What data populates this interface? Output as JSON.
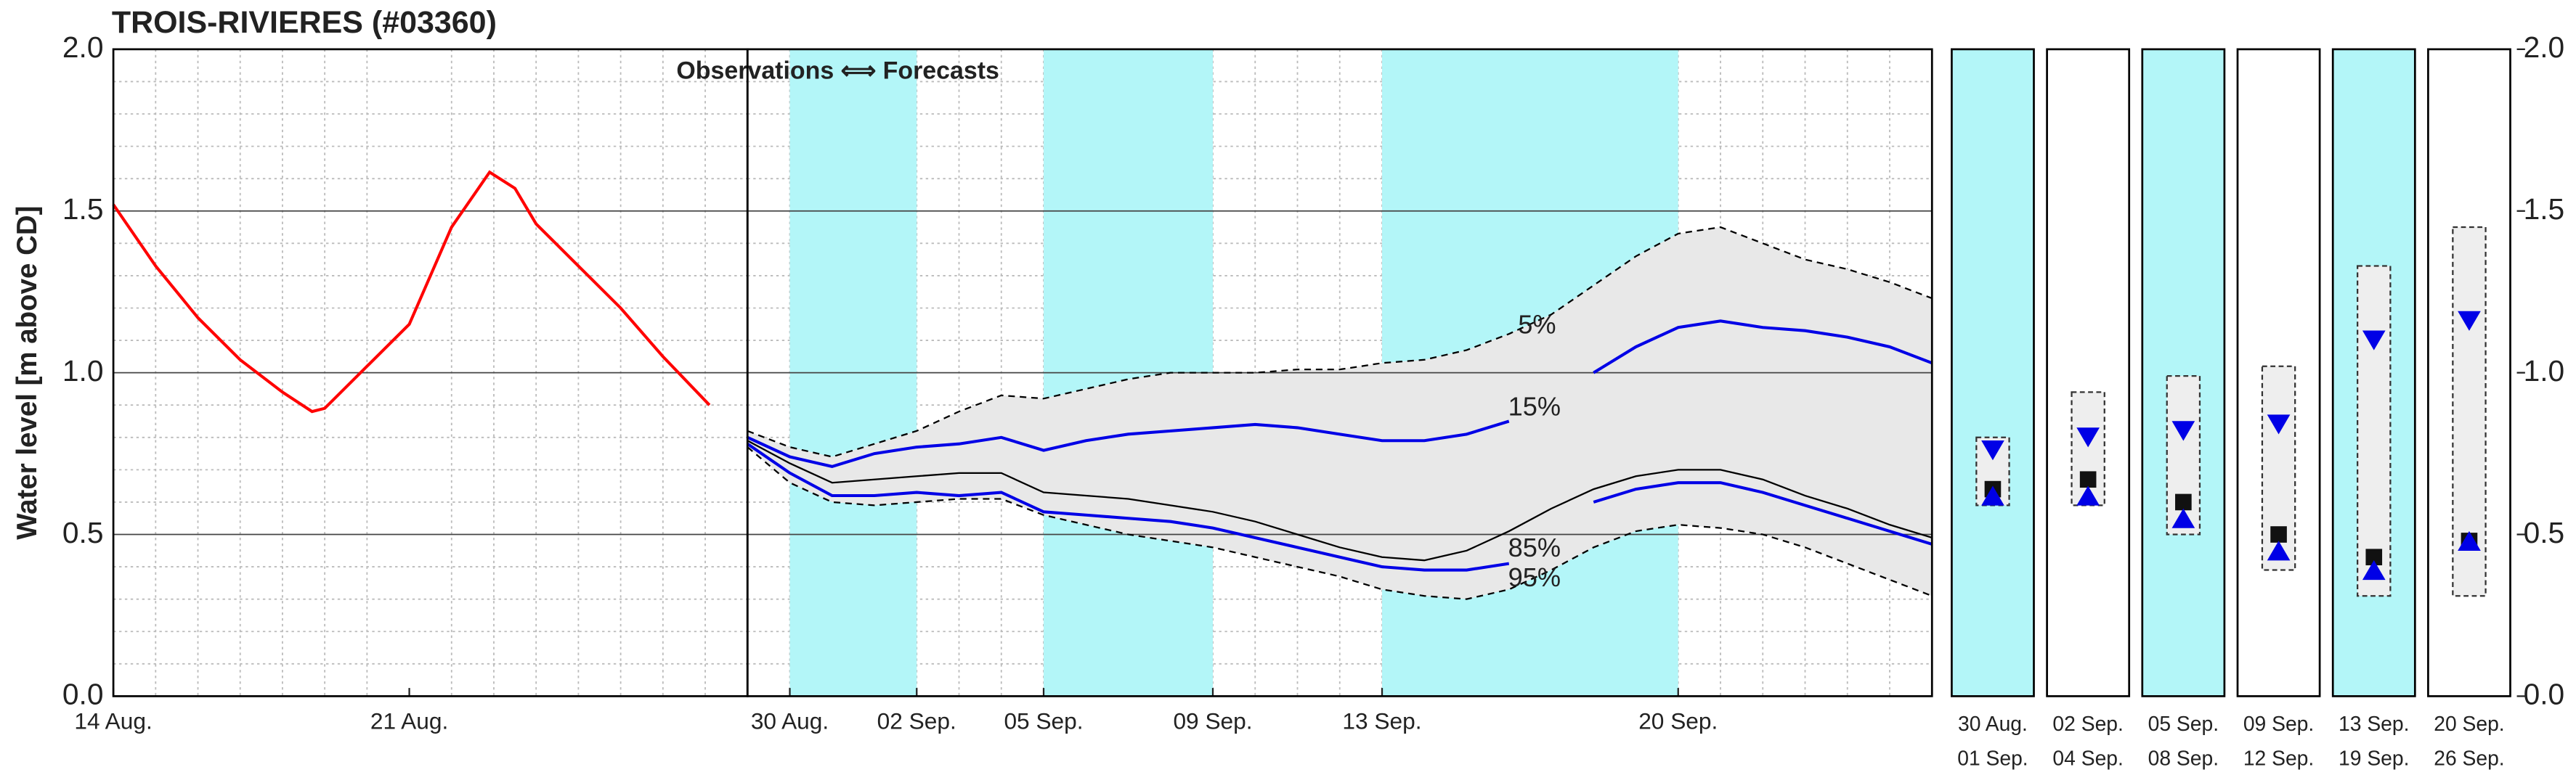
{
  "chart_data": [
    {
      "type": "line",
      "title": "TROIS-RIVIERES (#03360)",
      "ylabel": "Water level [m above CD]",
      "x": [
        14,
        15,
        16,
        17,
        18,
        18.7,
        19,
        20,
        21,
        22,
        22.9,
        23.5,
        24,
        25,
        26,
        27,
        28.1
      ],
      "series": [
        {
          "color": "#ff0000",
          "values": [
            1.52,
            1.33,
            1.17,
            1.04,
            0.94,
            0.88,
            0.89,
            1.02,
            1.15,
            1.45,
            1.62,
            1.57,
            1.46,
            1.33,
            1.2,
            1.05,
            0.9
          ]
        }
      ],
      "xlim": [
        14,
        29
      ],
      "xticks": [
        {
          "value": 14,
          "label": "14 Aug."
        },
        {
          "value": 21,
          "label": "21 Aug."
        }
      ],
      "xminorticks": [
        15,
        16,
        17,
        18,
        19,
        20,
        22,
        23,
        24,
        25,
        26,
        27,
        28
      ],
      "ylim": [
        0,
        2
      ],
      "yticks": [
        {
          "value": 0,
          "label": "0.0"
        },
        0.5,
        {
          "value": 1,
          "label": "1.0"
        },
        1.5,
        {
          "value": 2,
          "label": "2.0"
        }
      ],
      "yminorticks": [
        0.1,
        0.2,
        0.3,
        0.4,
        0.6,
        0.7,
        0.8,
        0.9,
        1.1,
        1.2,
        1.3,
        1.4,
        1.6,
        1.7,
        1.8,
        1.9
      ],
      "grid": true
    },
    {
      "type": "band_line",
      "annotation": "Observations ⟺ Forecasts",
      "x": [
        29,
        30,
        31,
        32,
        33,
        34,
        35,
        36,
        37,
        38,
        39,
        40,
        41,
        42,
        43,
        44,
        45,
        46,
        47,
        48,
        49,
        50,
        51,
        52,
        53,
        54,
        55,
        56,
        57
      ],
      "series": [
        {
          "name": "5%",
          "color": "#000000",
          "dashed": true,
          "values": [
            0.82,
            0.77,
            0.74,
            0.78,
            0.82,
            0.88,
            0.93,
            0.92,
            0.95,
            0.98,
            1.0,
            1.0,
            1.0,
            1.01,
            1.01,
            1.03,
            1.04,
            1.07,
            1.12,
            1.18,
            1.27,
            1.36,
            1.43,
            1.45,
            1.4,
            1.35,
            1.32,
            1.28,
            1.23
          ]
        },
        {
          "name": "15%",
          "color": "#0000e6",
          "dashed": false,
          "values": [
            0.8,
            0.74,
            0.71,
            0.75,
            0.77,
            0.78,
            0.8,
            0.76,
            0.79,
            0.81,
            0.82,
            0.83,
            0.84,
            0.83,
            0.81,
            0.79,
            0.79,
            0.81,
            0.85,
            null,
            1.0,
            1.08,
            1.14,
            1.16,
            1.14,
            1.13,
            1.11,
            1.08,
            1.03
          ]
        },
        {
          "color": "#000000",
          "dashed": false,
          "values": [
            0.79,
            0.72,
            0.66,
            0.67,
            0.68,
            0.69,
            0.69,
            0.63,
            0.62,
            0.61,
            0.59,
            0.57,
            0.54,
            0.5,
            0.46,
            0.43,
            0.42,
            0.45,
            0.51,
            0.58,
            0.64,
            0.68,
            0.7,
            0.7,
            0.67,
            0.62,
            0.58,
            0.53,
            0.49
          ]
        },
        {
          "name": "85%",
          "color": "#0000e6",
          "dashed": false,
          "values": [
            0.78,
            0.69,
            0.62,
            0.62,
            0.63,
            0.62,
            0.63,
            0.57,
            0.56,
            0.55,
            0.54,
            0.52,
            0.49,
            0.46,
            0.43,
            0.4,
            0.39,
            0.39,
            0.41,
            null,
            0.6,
            0.64,
            0.66,
            0.66,
            0.63,
            0.59,
            0.55,
            0.51,
            0.47
          ]
        },
        {
          "name": "95%",
          "color": "#000000",
          "dashed": true,
          "values": [
            0.77,
            0.66,
            0.6,
            0.59,
            0.6,
            0.61,
            0.61,
            0.56,
            0.53,
            0.5,
            0.48,
            0.46,
            0.43,
            0.4,
            0.37,
            0.33,
            0.31,
            0.3,
            0.33,
            0.39,
            0.46,
            0.51,
            0.53,
            0.52,
            0.5,
            0.46,
            0.41,
            0.36,
            0.31
          ]
        }
      ],
      "band_color": "#e8e8e8",
      "shade_color": "#b3f6f8",
      "shaded_periods": [
        [
          30,
          33
        ],
        [
          36,
          40
        ],
        [
          44,
          51
        ]
      ],
      "xlim": [
        29,
        57
      ],
      "xticks": [
        {
          "value": 30,
          "label": "30 Aug."
        },
        {
          "value": 33,
          "label": "02 Sep."
        },
        {
          "value": 36,
          "label": "05 Sep."
        },
        {
          "value": 40,
          "label": "09 Sep."
        },
        {
          "value": 44,
          "label": "13 Sep."
        },
        {
          "value": 51,
          "label": "20 Sep."
        }
      ],
      "xminorticks": [
        30,
        31,
        32,
        33,
        34,
        35,
        36,
        37,
        38,
        39,
        40,
        41,
        42,
        43,
        44,
        45,
        46,
        47,
        48,
        49,
        50,
        51,
        52,
        53,
        54,
        55,
        56
      ],
      "ylim": [
        0,
        2
      ],
      "yticks": [
        {
          "value": 0,
          "label": "0.0"
        },
        0.5,
        {
          "value": 1,
          "label": "1.0"
        },
        1.5,
        {
          "value": 2,
          "label": "2.0"
        }
      ],
      "yminorticks": [
        0.1,
        0.2,
        0.3,
        0.4,
        0.6,
        0.7,
        0.8,
        0.9,
        1.1,
        1.2,
        1.3,
        1.4,
        1.6,
        1.7,
        1.8,
        1.9
      ],
      "grid": true
    },
    {
      "type": "range",
      "categories": [
        {
          "start": "30 Aug.",
          "end": "01 Sep."
        },
        {
          "start": "02 Sep.",
          "end": "04 Sep."
        },
        {
          "start": "05 Sep.",
          "end": "08 Sep."
        },
        {
          "start": "09 Sep.",
          "end": "12 Sep."
        },
        {
          "start": "13 Sep.",
          "end": "19 Sep."
        },
        {
          "start": "20 Sep.",
          "end": "26 Sep."
        }
      ],
      "shaded": [
        true,
        false,
        true,
        false,
        true,
        false
      ],
      "high": [
        0.8,
        0.94,
        0.99,
        1.02,
        1.33,
        1.45
      ],
      "low": [
        0.59,
        0.59,
        0.5,
        0.39,
        0.31,
        0.31
      ],
      "median": [
        0.64,
        0.67,
        0.6,
        0.5,
        0.43,
        0.48
      ],
      "upper": [
        0.76,
        0.8,
        0.82,
        0.84,
        1.1,
        1.16
      ],
      "lower": [
        0.62,
        0.62,
        0.55,
        0.45,
        0.39,
        0.48
      ],
      "marker_color": "#0000e6",
      "shade_color": "#b3f6f8",
      "ylim": [
        0,
        2
      ],
      "yticks": [
        {
          "value": 0,
          "label": "0.0"
        },
        0.5,
        {
          "value": 1,
          "label": "1.0"
        },
        1.5,
        {
          "value": 2,
          "label": "2.0"
        }
      ]
    }
  ]
}
